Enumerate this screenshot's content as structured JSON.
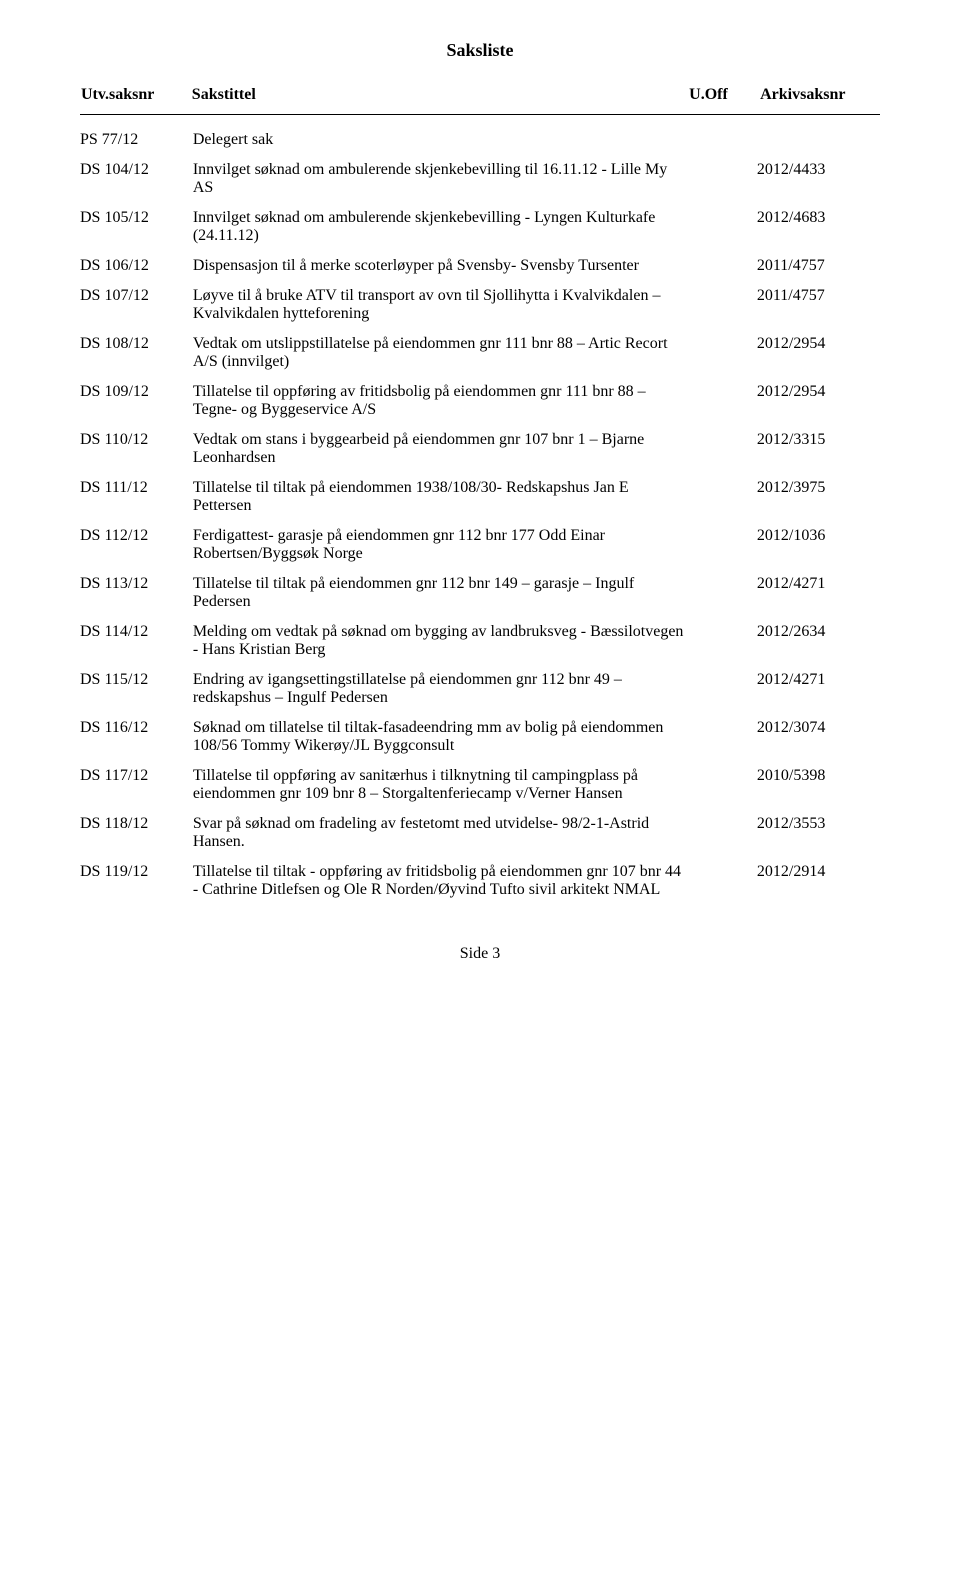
{
  "title": "Saksliste",
  "columns": {
    "saksnr": "Utv.saksnr",
    "sakstittel": "Sakstittel",
    "uoff": "U.Off",
    "arkiv": "Arkivsaksnr"
  },
  "rows": [
    {
      "saksnr": "PS 77/12",
      "title": "Delegert sak",
      "arkiv": ""
    },
    {
      "saksnr": "DS 104/12",
      "title": "Innvilget søknad om ambulerende skjenkebevilling til 16.11.12 - Lille My AS",
      "arkiv": "2012/4433"
    },
    {
      "saksnr": "DS 105/12",
      "title": "Innvilget søknad om ambulerende skjenkebevilling - Lyngen Kulturkafe (24.11.12)",
      "arkiv": "2012/4683"
    },
    {
      "saksnr": "DS 106/12",
      "title": "Dispensasjon til å merke scoterløyper på Svensby- Svensby Tursenter",
      "arkiv": "2011/4757"
    },
    {
      "saksnr": "DS 107/12",
      "title": "Løyve til å bruke ATV til transport av ovn til Sjollihytta i Kvalvikdalen – Kvalvikdalen hytteforening",
      "arkiv": "2011/4757"
    },
    {
      "saksnr": "DS 108/12",
      "title": "Vedtak om utslippstillatelse på eiendommen gnr 111 bnr 88 – Artic Recort A/S (innvilget)",
      "arkiv": "2012/2954"
    },
    {
      "saksnr": "DS 109/12",
      "title": "Tillatelse til oppføring av fritidsbolig på eiendommen gnr 111 bnr 88 – Tegne- og Byggeservice A/S",
      "arkiv": "2012/2954"
    },
    {
      "saksnr": "DS 110/12",
      "title": "Vedtak om stans i byggearbeid på eiendommen gnr 107 bnr 1 – Bjarne Leonhardsen",
      "arkiv": "2012/3315"
    },
    {
      "saksnr": "DS 111/12",
      "title": "Tillatelse til tiltak på eiendommen 1938/108/30- Redskapshus Jan E Pettersen",
      "arkiv": "2012/3975"
    },
    {
      "saksnr": "DS 112/12",
      "title": "Ferdigattest- garasje på eiendommen gnr 112 bnr 177 Odd Einar Robertsen/Byggsøk Norge",
      "arkiv": "2012/1036"
    },
    {
      "saksnr": "DS 113/12",
      "title": "Tillatelse til tiltak på eiendommen gnr 112 bnr 149 – garasje – Ingulf Pedersen",
      "arkiv": "2012/4271"
    },
    {
      "saksnr": "DS 114/12",
      "title": "Melding om vedtak på søknad om bygging av landbruksveg - Bæssilotvegen - Hans Kristian Berg",
      "arkiv": "2012/2634"
    },
    {
      "saksnr": "DS 115/12",
      "title": "Endring av igangsettingstillatelse på eiendommen gnr 112 bnr 49 – redskapshus – Ingulf Pedersen",
      "arkiv": "2012/4271"
    },
    {
      "saksnr": "DS 116/12",
      "title": "Søknad om tillatelse til tiltak-fasadeendring mm av bolig på eiendommen 108/56 Tommy Wikerøy/JL Byggconsult",
      "arkiv": "2012/3074"
    },
    {
      "saksnr": "DS 117/12",
      "title": "Tillatelse til oppføring av sanitærhus i tilknytning til campingplass på eiendommen gnr 109 bnr 8 – Storgaltenferiecamp v/Verner Hansen",
      "arkiv": "2010/5398"
    },
    {
      "saksnr": "DS 118/12",
      "title": "Svar på søknad om fradeling av festetomt med utvidelse- 98/2-1-Astrid Hansen.",
      "arkiv": "2012/3553"
    },
    {
      "saksnr": "DS 119/12",
      "title": "Tillatelse til tiltak - oppføring av fritidsbolig på eiendommen gnr 107 bnr 44 - Cathrine Ditlefsen og Ole R Norden/Øyvind Tufto sivil arkitekt NMAL",
      "arkiv": "2012/2914"
    }
  ],
  "footer": "Side 3"
}
